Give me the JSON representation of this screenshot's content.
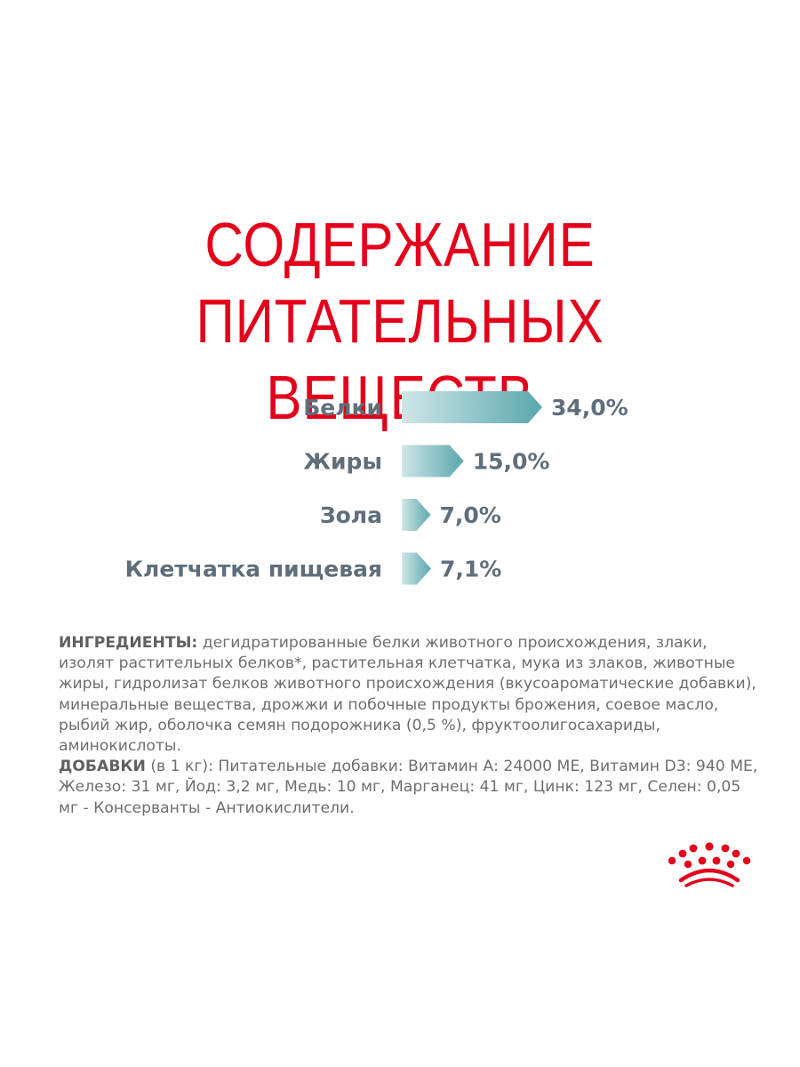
{
  "title": {
    "line1": "СОДЕРЖАНИЕ",
    "line2": "ПИТАТЕЛЬНЫХ ВЕЩЕСТВ"
  },
  "colors": {
    "title": "#e3001b",
    "label_text": "#5f6e7b",
    "bar_light": "#cfe7e8",
    "bar_dark": "#5aa7ae",
    "logo": "#e3001b"
  },
  "chart_data": {
    "type": "bar",
    "orientation": "horizontal",
    "categories": [
      "Белки",
      "Жиры",
      "Зола",
      "Клетчатка пищевая"
    ],
    "values": [
      34.0,
      15.0,
      7.0,
      7.1
    ],
    "value_labels": [
      "34,0%",
      "15,0%",
      "7,0%",
      "7,1%"
    ],
    "unit": "%",
    "xlim": [
      0,
      34
    ],
    "grid": false,
    "legend": "none"
  },
  "ingredients": {
    "label": "ИНГРЕДИЕНТЫ:",
    "text": " дегидратированные белки животного происхождения, злаки, изолят растительных белков*, растительная клетчатка, мука из злаков, животные жиры, гидролизат белков животного происхождения (вкусоароматические добавки), минеральные вещества, дрожжи и побочные продукты брожения, соевое масло, рыбий жир, оболочка семян подорожника (0,5 %), фруктоолигосахариды, аминокислоты."
  },
  "additives": {
    "label": "ДОБАВКИ",
    "text": " (в 1 кг): Питательные добавки: Витамин А: 24000 МЕ, Витамин D3: 940 МЕ, Железо: 31 мг, Йод: 3,2 мг, Медь: 10 мг, Марганец: 41 мг, Цинк: 123 мг, Селен: 0,05 мг - Консерванты - Антиокислители."
  },
  "logo": {
    "icon": "crown-icon"
  }
}
